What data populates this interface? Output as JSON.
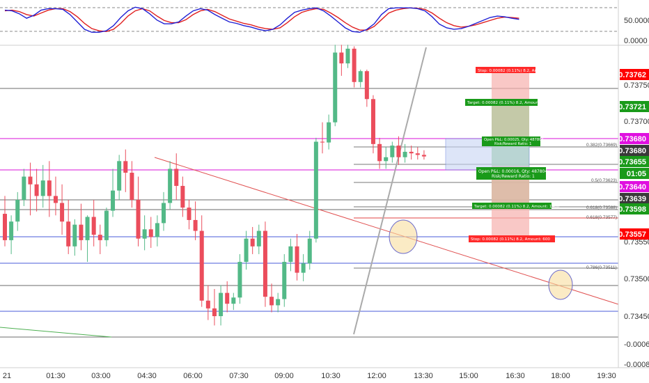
{
  "colors": {
    "up": "#53b987",
    "down": "#eb4d5c",
    "red_label": "#ff0000",
    "green_label": "#1a9a1a",
    "magenta": "#e040e0",
    "blue_line": "#4a5bd8",
    "stoch_k": "#1f1fd4",
    "stoch_d": "#e01f1f"
  },
  "oscillator": {
    "axis_labels": [
      "50.0000",
      "0.0000"
    ],
    "levels": [
      80,
      20
    ]
  },
  "price_axis": {
    "ticks": [
      "0.73750",
      "0.73700",
      "0.73550",
      "0.73500",
      "0.73450",
      "-0.0006",
      "-0.0008"
    ]
  },
  "price_badges": [
    {
      "text": "0.73762",
      "style": "red"
    },
    {
      "text": "0.73721",
      "style": "green"
    },
    {
      "text": "0.73680",
      "style": "magenta"
    },
    {
      "text": "0.73680",
      "style": "dark"
    },
    {
      "text": "0.73655",
      "style": "green"
    },
    {
      "text": "01:05",
      "style": "green"
    },
    {
      "text": "0.73640",
      "style": "magenta"
    },
    {
      "text": "0.73639",
      "style": "dark"
    },
    {
      "text": "0.73598",
      "style": "green"
    },
    {
      "text": "0.73557",
      "style": "red"
    }
  ],
  "time_axis": {
    "labels": [
      "21",
      "01:30",
      "03:00",
      "04:30",
      "06:00",
      "07:30",
      "09:00",
      "10:30",
      "12:00",
      "13:30",
      "15:00",
      "16:30",
      "18:00",
      "19:30"
    ]
  },
  "position_labels": {
    "stop_top": "Stop: 0.00082 (0.11%) 8.2, Amount: 600",
    "target_top": "Target: 0.00082 (0.11%) 8.2, Amount: 1400",
    "open_short_line1": "Open P&L: 0.00025, Qty: 487804",
    "open_short_line2": "Risk/Reward Ratio: 1",
    "open_long_line1": "Open P&L: 0.00016, Qty: 487804",
    "open_long_line2": "Risk/Reward Ratio: 1",
    "target_bottom": "Target: 0.00082 (0.11%) 8.2, Amount: 1400",
    "stop_bottom": "Stop: 0.00082 (0.11%) 8.2, Amount: 600"
  },
  "fib_labels": [
    "0.382(0.73669)",
    "0.5(0.73623)",
    "0.618(0.73588)",
    "0.618(0.73577)",
    "0.786(0.73511)"
  ],
  "candles": [
    {
      "o": 0.73582,
      "h": 0.73605,
      "c": 0.73548,
      "l": 0.7354
    },
    {
      "o": 0.73548,
      "h": 0.7358,
      "c": 0.73572,
      "l": 0.7353
    },
    {
      "o": 0.73572,
      "h": 0.7361,
      "c": 0.736,
      "l": 0.7356
    },
    {
      "o": 0.736,
      "h": 0.7364,
      "c": 0.7363,
      "l": 0.73592
    },
    {
      "o": 0.7363,
      "h": 0.73648,
      "c": 0.7362,
      "l": 0.7358
    },
    {
      "o": 0.7362,
      "h": 0.7364,
      "c": 0.73605,
      "l": 0.73585
    },
    {
      "o": 0.73605,
      "h": 0.73645,
      "c": 0.73625,
      "l": 0.7359
    },
    {
      "o": 0.73625,
      "h": 0.7365,
      "c": 0.73605,
      "l": 0.73578
    },
    {
      "o": 0.73605,
      "h": 0.7363,
      "c": 0.73596,
      "l": 0.7358
    },
    {
      "o": 0.73596,
      "h": 0.7362,
      "c": 0.73572,
      "l": 0.73555
    },
    {
      "o": 0.73572,
      "h": 0.736,
      "c": 0.7354,
      "l": 0.7353
    },
    {
      "o": 0.7354,
      "h": 0.73575,
      "c": 0.73568,
      "l": 0.73528
    },
    {
      "o": 0.73568,
      "h": 0.73595,
      "c": 0.73548,
      "l": 0.73535
    },
    {
      "o": 0.73548,
      "h": 0.7358,
      "c": 0.73578,
      "l": 0.7352
    },
    {
      "o": 0.73578,
      "h": 0.736,
      "c": 0.73555,
      "l": 0.7354
    },
    {
      "o": 0.73555,
      "h": 0.73568,
      "c": 0.73548,
      "l": 0.7353
    },
    {
      "o": 0.73548,
      "h": 0.7359,
      "c": 0.73586,
      "l": 0.7354
    },
    {
      "o": 0.73586,
      "h": 0.7364,
      "c": 0.73612,
      "l": 0.73578
    },
    {
      "o": 0.73612,
      "h": 0.73658,
      "c": 0.7365,
      "l": 0.736
    },
    {
      "o": 0.7365,
      "h": 0.73665,
      "c": 0.73635,
      "l": 0.7361
    },
    {
      "o": 0.73635,
      "h": 0.7365,
      "c": 0.736,
      "l": 0.7359
    },
    {
      "o": 0.736,
      "h": 0.7363,
      "c": 0.7355,
      "l": 0.7354
    },
    {
      "o": 0.7355,
      "h": 0.7358,
      "c": 0.73562,
      "l": 0.73535
    },
    {
      "o": 0.73562,
      "h": 0.73578,
      "c": 0.73552,
      "l": 0.73538
    },
    {
      "o": 0.73552,
      "h": 0.7358,
      "c": 0.7357,
      "l": 0.7354
    },
    {
      "o": 0.7357,
      "h": 0.7361,
      "c": 0.73596,
      "l": 0.7356
    },
    {
      "o": 0.73596,
      "h": 0.7365,
      "c": 0.7364,
      "l": 0.73588
    },
    {
      "o": 0.7364,
      "h": 0.7366,
      "c": 0.73618,
      "l": 0.736
    },
    {
      "o": 0.73618,
      "h": 0.7363,
      "c": 0.7359,
      "l": 0.73578
    },
    {
      "o": 0.7359,
      "h": 0.736,
      "c": 0.73574,
      "l": 0.73562
    },
    {
      "o": 0.73574,
      "h": 0.73598,
      "c": 0.7356,
      "l": 0.73548
    },
    {
      "o": 0.7356,
      "h": 0.7358,
      "c": 0.7347,
      "l": 0.73462
    },
    {
      "o": 0.7347,
      "h": 0.7349,
      "c": 0.7346,
      "l": 0.73445
    },
    {
      "o": 0.7346,
      "h": 0.73485,
      "c": 0.7345,
      "l": 0.73438
    },
    {
      "o": 0.7345,
      "h": 0.7349,
      "c": 0.7348,
      "l": 0.73438
    },
    {
      "o": 0.7348,
      "h": 0.73495,
      "c": 0.73466,
      "l": 0.73455
    },
    {
      "o": 0.73466,
      "h": 0.7348,
      "c": 0.73474,
      "l": 0.73458
    },
    {
      "o": 0.73474,
      "h": 0.7353,
      "c": 0.7352,
      "l": 0.73466
    },
    {
      "o": 0.7352,
      "h": 0.7356,
      "c": 0.7355,
      "l": 0.7351
    },
    {
      "o": 0.7355,
      "h": 0.73565,
      "c": 0.7354,
      "l": 0.7353
    },
    {
      "o": 0.7354,
      "h": 0.73568,
      "c": 0.7356,
      "l": 0.7353
    },
    {
      "o": 0.7356,
      "h": 0.73572,
      "c": 0.73475,
      "l": 0.73462
    },
    {
      "o": 0.73475,
      "h": 0.73492,
      "c": 0.73464,
      "l": 0.73455
    },
    {
      "o": 0.73464,
      "h": 0.7348,
      "c": 0.73472,
      "l": 0.73455
    },
    {
      "o": 0.73472,
      "h": 0.7353,
      "c": 0.7352,
      "l": 0.73462
    },
    {
      "o": 0.7352,
      "h": 0.7355,
      "c": 0.7354,
      "l": 0.73508
    },
    {
      "o": 0.7354,
      "h": 0.73556,
      "c": 0.73506,
      "l": 0.73496
    },
    {
      "o": 0.73506,
      "h": 0.7353,
      "c": 0.73518,
      "l": 0.73495
    },
    {
      "o": 0.73518,
      "h": 0.7356,
      "c": 0.7355,
      "l": 0.7351
    },
    {
      "o": 0.7355,
      "h": 0.7368,
      "c": 0.73675,
      "l": 0.73545
    },
    {
      "o": 0.73675,
      "h": 0.737,
      "c": 0.73674,
      "l": 0.7366
    },
    {
      "o": 0.73674,
      "h": 0.7371,
      "c": 0.737,
      "l": 0.73665
    },
    {
      "o": 0.737,
      "h": 0.738,
      "c": 0.7379,
      "l": 0.73695
    },
    {
      "o": 0.7379,
      "h": 0.738,
      "c": 0.73776,
      "l": 0.7376
    },
    {
      "o": 0.73776,
      "h": 0.738,
      "c": 0.73795,
      "l": 0.7377
    },
    {
      "o": 0.73795,
      "h": 0.73798,
      "c": 0.73752,
      "l": 0.73745
    },
    {
      "o": 0.73752,
      "h": 0.73768,
      "c": 0.73766,
      "l": 0.73745
    },
    {
      "o": 0.73766,
      "h": 0.73768,
      "c": 0.7373,
      "l": 0.7372
    },
    {
      "o": 0.7373,
      "h": 0.73735,
      "c": 0.73672,
      "l": 0.7366
    },
    {
      "o": 0.73672,
      "h": 0.7368,
      "c": 0.7365,
      "l": 0.7364
    },
    {
      "o": 0.7365,
      "h": 0.73668,
      "c": 0.73655,
      "l": 0.7364
    },
    {
      "o": 0.73655,
      "h": 0.73675,
      "c": 0.7367,
      "l": 0.73648
    },
    {
      "o": 0.7367,
      "h": 0.73682,
      "c": 0.73655,
      "l": 0.73645
    },
    {
      "o": 0.73655,
      "h": 0.73672,
      "c": 0.73662,
      "l": 0.73648
    },
    {
      "o": 0.73662,
      "h": 0.7367,
      "c": 0.7366,
      "l": 0.73652
    },
    {
      "o": 0.7366,
      "h": 0.73668,
      "c": 0.73658,
      "l": 0.73652
    },
    {
      "o": 0.73658,
      "h": 0.73664,
      "c": 0.73656,
      "l": 0.73652
    }
  ],
  "stochastic": {
    "k": [
      82,
      80,
      72,
      60,
      68,
      82,
      86,
      86,
      84,
      70,
      50,
      30,
      22,
      22,
      26,
      40,
      62,
      80,
      90,
      86,
      72,
      55,
      45,
      45,
      50,
      66,
      80,
      86,
      82,
      70,
      60,
      50,
      46,
      40,
      36,
      30,
      26,
      30,
      42,
      60,
      76,
      82,
      86,
      88,
      80,
      66,
      50,
      34,
      24,
      22,
      30,
      45,
      70,
      86,
      88,
      88,
      88,
      86,
      80,
      64,
      44,
      34,
      30,
      32,
      38,
      46,
      54,
      62,
      66,
      64,
      60,
      57
    ],
    "d": [
      80,
      82,
      78,
      70,
      66,
      74,
      82,
      86,
      86,
      78,
      64,
      46,
      32,
      26,
      24,
      30,
      46,
      66,
      80,
      86,
      80,
      66,
      54,
      48,
      48,
      56,
      70,
      80,
      84,
      78,
      68,
      58,
      52,
      46,
      42,
      36,
      32,
      30,
      34,
      48,
      64,
      76,
      82,
      86,
      84,
      74,
      62,
      48,
      36,
      28,
      28,
      38,
      56,
      74,
      82,
      86,
      88,
      87,
      84,
      74,
      60,
      48,
      40,
      36,
      38,
      42,
      48,
      54,
      60,
      63,
      62,
      60
    ]
  }
}
